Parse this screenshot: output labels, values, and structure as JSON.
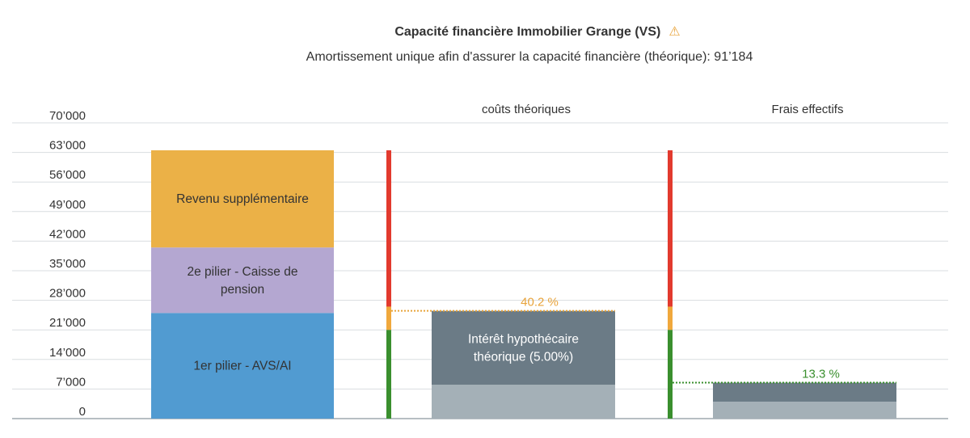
{
  "chart_data": {
    "type": "bar",
    "title": "Capacité financière Immobilier Grange (VS)",
    "subtitle": "Amortissement unique afin d'assurer la capacité financière (théorique): 91’184",
    "warning_icon": "warning-triangle-icon",
    "ylim": [
      0,
      70000
    ],
    "y_ticks": [
      {
        "value": 0,
        "label": "0"
      },
      {
        "value": 7000,
        "label": "7’000"
      },
      {
        "value": 14000,
        "label": "14’000"
      },
      {
        "value": 21000,
        "label": "21’000"
      },
      {
        "value": 28000,
        "label": "28’000"
      },
      {
        "value": 35000,
        "label": "35’000"
      },
      {
        "value": 42000,
        "label": "42’000"
      },
      {
        "value": 49000,
        "label": "49’000"
      },
      {
        "value": 56000,
        "label": "56’000"
      },
      {
        "value": 63000,
        "label": "63’000"
      },
      {
        "value": 70000,
        "label": "70’000"
      }
    ],
    "categories": [
      "",
      "coûts théoriques",
      "Frais effectifs"
    ],
    "income_stack": [
      {
        "label": "1er pilier - AVS/AI",
        "value": 25000,
        "color": "#519bd1"
      },
      {
        "label": "2e pilier - Caisse de pension",
        "value": 15500,
        "color": "#b4a7d1"
      },
      {
        "label": "Revenu supplémentaire",
        "value": 23000,
        "color": "#ebb147"
      }
    ],
    "income_total": 63500,
    "cost_stacks": [
      {
        "category": "coûts théoriques",
        "percent_label": "40.2 %",
        "percent_color": "#e8a33a",
        "total": 25500,
        "segments": [
          {
            "label": "",
            "value": 8000,
            "color": "#a4b0b7"
          },
          {
            "label": "Intérêt hypothécaire théorique (5.00%)",
            "value": 17500,
            "color": "#6b7b86"
          }
        ]
      },
      {
        "category": "Frais effectifs",
        "percent_label": "13.3 %",
        "percent_color": "#3a8f2e",
        "total": 8500,
        "segments": [
          {
            "label": "",
            "value": 4000,
            "color": "#a4b0b7"
          },
          {
            "label": "",
            "value": 4500,
            "color": "#6b7b86"
          }
        ]
      }
    ],
    "threshold_bars": [
      {
        "green_to": 21000,
        "orange_to": 26500,
        "red_to": 63500
      },
      {
        "green_to": 21000,
        "orange_to": 26500,
        "red_to": 63500
      }
    ],
    "threshold_colors": {
      "green": "#3a8f2e",
      "orange": "#f0a83c",
      "red": "#e23a2e"
    },
    "grid": true
  }
}
